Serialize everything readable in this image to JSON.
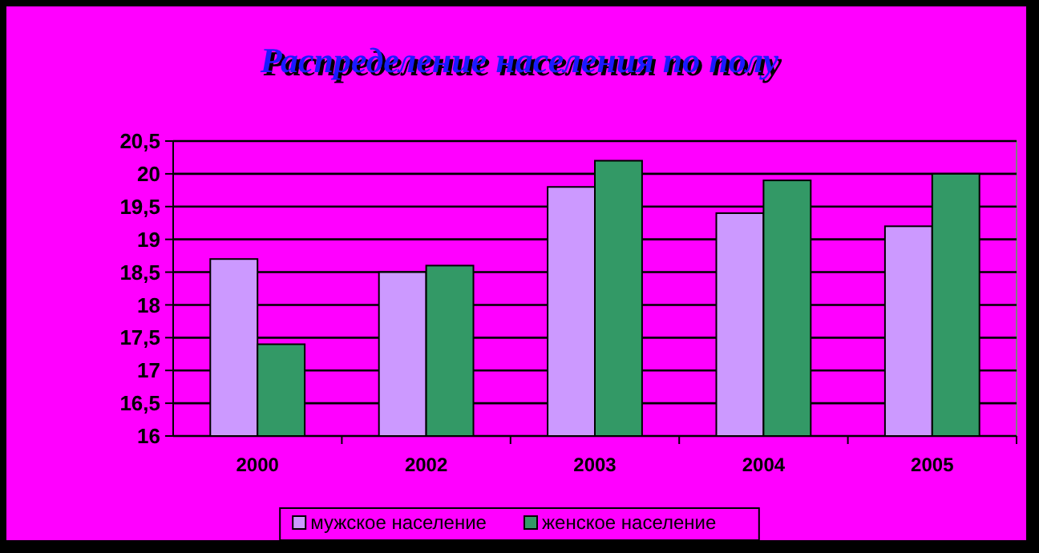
{
  "chart_data": {
    "type": "bar",
    "title": "Распределение населения по полу",
    "categories": [
      "2000",
      "2002",
      "2003",
      "2004",
      "2005"
    ],
    "series": [
      {
        "name": "мужское население",
        "color": "#cc99ff",
        "values": [
          18.7,
          18.5,
          19.8,
          19.4,
          19.2
        ]
      },
      {
        "name": "женское население",
        "color": "#339966",
        "values": [
          17.4,
          18.6,
          20.2,
          19.9,
          20.0
        ]
      }
    ],
    "ylim": [
      16,
      20.5
    ],
    "yticks": [
      {
        "value": 16,
        "label": "16"
      },
      {
        "value": 16.5,
        "label": "16,5"
      },
      {
        "value": 17,
        "label": "17"
      },
      {
        "value": 17.5,
        "label": "17,5"
      },
      {
        "value": 18,
        "label": "18"
      },
      {
        "value": 18.5,
        "label": "18,5"
      },
      {
        "value": 19,
        "label": "19"
      },
      {
        "value": 19.5,
        "label": "19,5"
      },
      {
        "value": 20,
        "label": "20"
      },
      {
        "value": 20.5,
        "label": "20,5"
      }
    ],
    "grid": "y",
    "legend": "bottom"
  }
}
